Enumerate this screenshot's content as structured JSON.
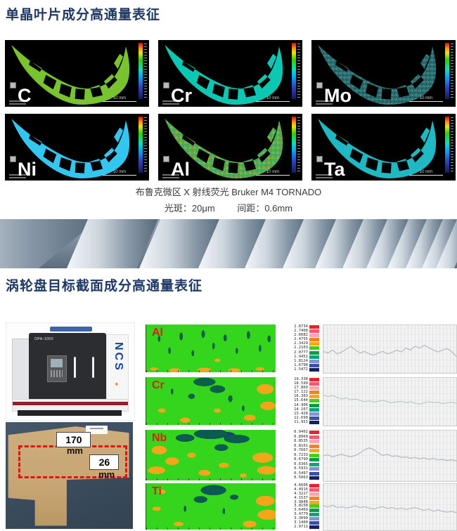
{
  "section1": {
    "title": "单晶叶片成分高通量表征"
  },
  "blades": {
    "scale_label": "10 mm",
    "items": [
      {
        "label": "C",
        "color": "#79c32e"
      },
      {
        "label": "Cr",
        "color": "#0cc7b2"
      },
      {
        "label": "Mo",
        "color": "#2a6b6e"
      },
      {
        "label": "Ni",
        "color": "#33c6f0"
      },
      {
        "label": "Al",
        "color": "#4db84d"
      },
      {
        "label": "Ta",
        "color": "#1fb9c4"
      }
    ]
  },
  "caption": {
    "line1": "布鲁克微区 X 射线荧光 Bruker M4 TORNADO",
    "spot": "光斑：20μm",
    "pitch": "间距：0.6mm"
  },
  "section2": {
    "title": "涡轮盘目标截面成分高通量表征"
  },
  "machine": {
    "brand": "NCS",
    "model": "OPA-1000",
    "spark": "✦"
  },
  "sample": {
    "length_value": "170",
    "length_unit": "mm",
    "width_value": "26",
    "width_unit": "mm"
  },
  "scale_colors": [
    "#e8232f",
    "#f25b6f",
    "#f7a6b6",
    "#f58220",
    "#ffa517",
    "#3fd216",
    "#119b46",
    "#0ea37a",
    "#8293d6",
    "#3b4fa5",
    "#15205f"
  ],
  "rows": [
    {
      "element": "Al",
      "scale": [
        "2.8734",
        "2.7408",
        "2.6082",
        "2.4755",
        "2.3429",
        "2.2103",
        "2.0777",
        "1.9451",
        "1.8124",
        "1.6798",
        "1.5472"
      ],
      "profile": [
        0.55,
        0.58,
        0.52,
        0.6,
        0.56,
        0.5,
        0.44,
        0.52,
        0.58,
        0.55,
        0.6,
        0.63,
        0.58,
        0.55,
        0.6,
        0.57,
        0.52,
        0.56,
        0.48,
        0.52,
        0.44,
        0.48,
        0.42,
        0.47,
        0.52,
        0.56,
        0.52,
        0.49,
        0.55,
        0.66
      ]
    },
    {
      "element": "Cr",
      "scale": [
        "19.338",
        "18.599",
        "17.860",
        "17.122",
        "16.383",
        "15.644",
        "14.906",
        "14.167",
        "13.428",
        "12.690",
        "11.951"
      ],
      "profile": [
        0.36,
        0.39,
        0.37,
        0.41,
        0.44,
        0.42,
        0.46,
        0.44,
        0.47,
        0.5,
        0.48,
        0.51,
        0.49,
        0.47,
        0.5,
        0.52,
        0.5,
        0.49,
        0.52,
        0.5,
        0.53,
        0.55,
        0.52,
        0.5,
        0.52,
        0.51,
        0.54,
        0.52,
        0.51,
        0.53
      ]
    },
    {
      "element": "Nb",
      "scale": [
        "0.9402",
        "0.8969",
        "0.8535",
        "0.8101",
        "0.7667",
        "0.7233",
        "0.6799",
        "0.6365",
        "0.5931",
        "0.5497",
        "0.5063"
      ],
      "profile": [
        0.5,
        0.48,
        0.52,
        0.49,
        0.47,
        0.5,
        0.52,
        0.49,
        0.44,
        0.38,
        0.34,
        0.38,
        0.44,
        0.49,
        0.47,
        0.51,
        0.5,
        0.53,
        0.52,
        0.55,
        0.53,
        0.56,
        0.54,
        0.57,
        0.55,
        0.58,
        0.57,
        0.59,
        0.58,
        0.6
      ]
    },
    {
      "element": "Ti",
      "scale": [
        "4.6606",
        "4.4916",
        "4.3227",
        "4.1537",
        "3.9848",
        "3.8158",
        "3.6469",
        "3.4779",
        "3.3090",
        "3.1400",
        "2.9711"
      ],
      "profile": [
        0.47,
        0.5,
        0.46,
        0.51,
        0.49,
        0.52,
        0.5,
        0.47,
        0.51,
        0.49,
        0.52,
        0.54,
        0.51,
        0.49,
        0.53,
        0.51,
        0.54,
        0.52,
        0.55,
        0.53,
        0.51,
        0.54,
        0.57,
        0.54,
        0.59,
        0.56,
        0.59,
        0.61,
        0.59,
        0.62
      ]
    }
  ]
}
